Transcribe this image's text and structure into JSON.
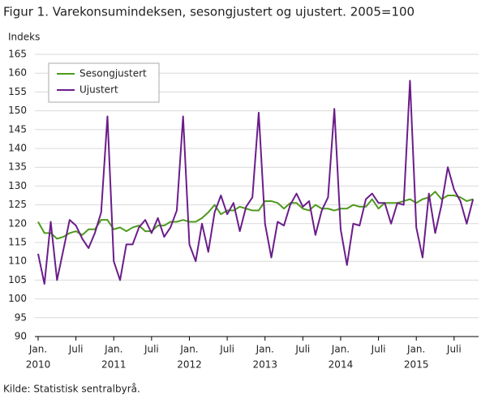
{
  "chart_data": {
    "type": "line",
    "title": "Figur 1. Varekonsumindeksen, sesongjustert og ujustert. 2005=100",
    "y_label": "Indeks",
    "source": "Kilde: Statistisk sentralbyrå.",
    "categories": [
      "Jan.",
      null,
      null,
      null,
      null,
      null,
      "Juli",
      null,
      null,
      null,
      null,
      null,
      "Jan.",
      null,
      null,
      null,
      null,
      null,
      "Juli",
      null,
      null,
      null,
      null,
      null,
      "Jan.",
      null,
      null,
      null,
      null,
      null,
      "Juli",
      null,
      null,
      null,
      null,
      null,
      "Jan.",
      null,
      null,
      null,
      null,
      null,
      "Juli",
      null,
      null,
      null,
      null,
      null,
      "Jan.",
      null,
      null,
      null,
      null,
      null,
      "Juli",
      null,
      null,
      null,
      null,
      null,
      "Jan.",
      null,
      null,
      null,
      null,
      null,
      "Juli",
      null,
      null,
      null
    ],
    "year_labels": [
      "2010",
      "2011",
      "2012",
      "2013",
      "2014",
      "2015"
    ],
    "series": [
      {
        "name": "Sesongjustert",
        "color": "#4e9a1e",
        "values": [
          120.5,
          117.5,
          117.5,
          116,
          116.5,
          117.5,
          118,
          117,
          118.5,
          118.5,
          121,
          121,
          118.5,
          119,
          118,
          119,
          119.5,
          118,
          118,
          119.5,
          119.5,
          120.5,
          120.5,
          121,
          120.5,
          120.5,
          121.5,
          123,
          125,
          122.5,
          123.5,
          123.5,
          124.5,
          124,
          123.5,
          123.5,
          126,
          126,
          125.5,
          124,
          125.5,
          125.5,
          124,
          123.5,
          125,
          124,
          124,
          123.5,
          124,
          124,
          125,
          124.5,
          124.5,
          126.5,
          124,
          125.5,
          125.5,
          125.5,
          126,
          126.5,
          125.5,
          126.5,
          127,
          128.5,
          126.5,
          127.5,
          127.5,
          127,
          126,
          126.5
        ]
      },
      {
        "name": "Ujustert",
        "color": "#6b1d8a",
        "values": [
          112,
          104,
          120.5,
          105,
          113,
          121,
          119.5,
          116,
          113.5,
          117.5,
          123,
          148.5,
          110,
          105,
          114.5,
          114.5,
          119,
          121,
          117.5,
          121.5,
          116.5,
          119,
          123.5,
          148.5,
          114.5,
          110,
          120,
          112.5,
          123,
          127.5,
          122.5,
          125.5,
          118,
          124.5,
          127,
          149.5,
          120,
          111,
          120.5,
          119.5,
          125,
          128,
          124.5,
          126,
          117,
          123.5,
          127,
          150.5,
          118.5,
          109,
          120,
          119.5,
          126.5,
          128,
          125.5,
          125.5,
          120,
          125.5,
          125,
          158,
          119,
          111,
          128,
          117.5,
          125,
          135,
          129,
          126,
          120,
          126.5
        ]
      }
    ],
    "ylim": [
      90,
      165
    ],
    "yticks": [
      90,
      95,
      100,
      105,
      110,
      115,
      120,
      125,
      130,
      135,
      140,
      145,
      150,
      155,
      160,
      165
    ],
    "grid": true,
    "legend": "upper left"
  }
}
